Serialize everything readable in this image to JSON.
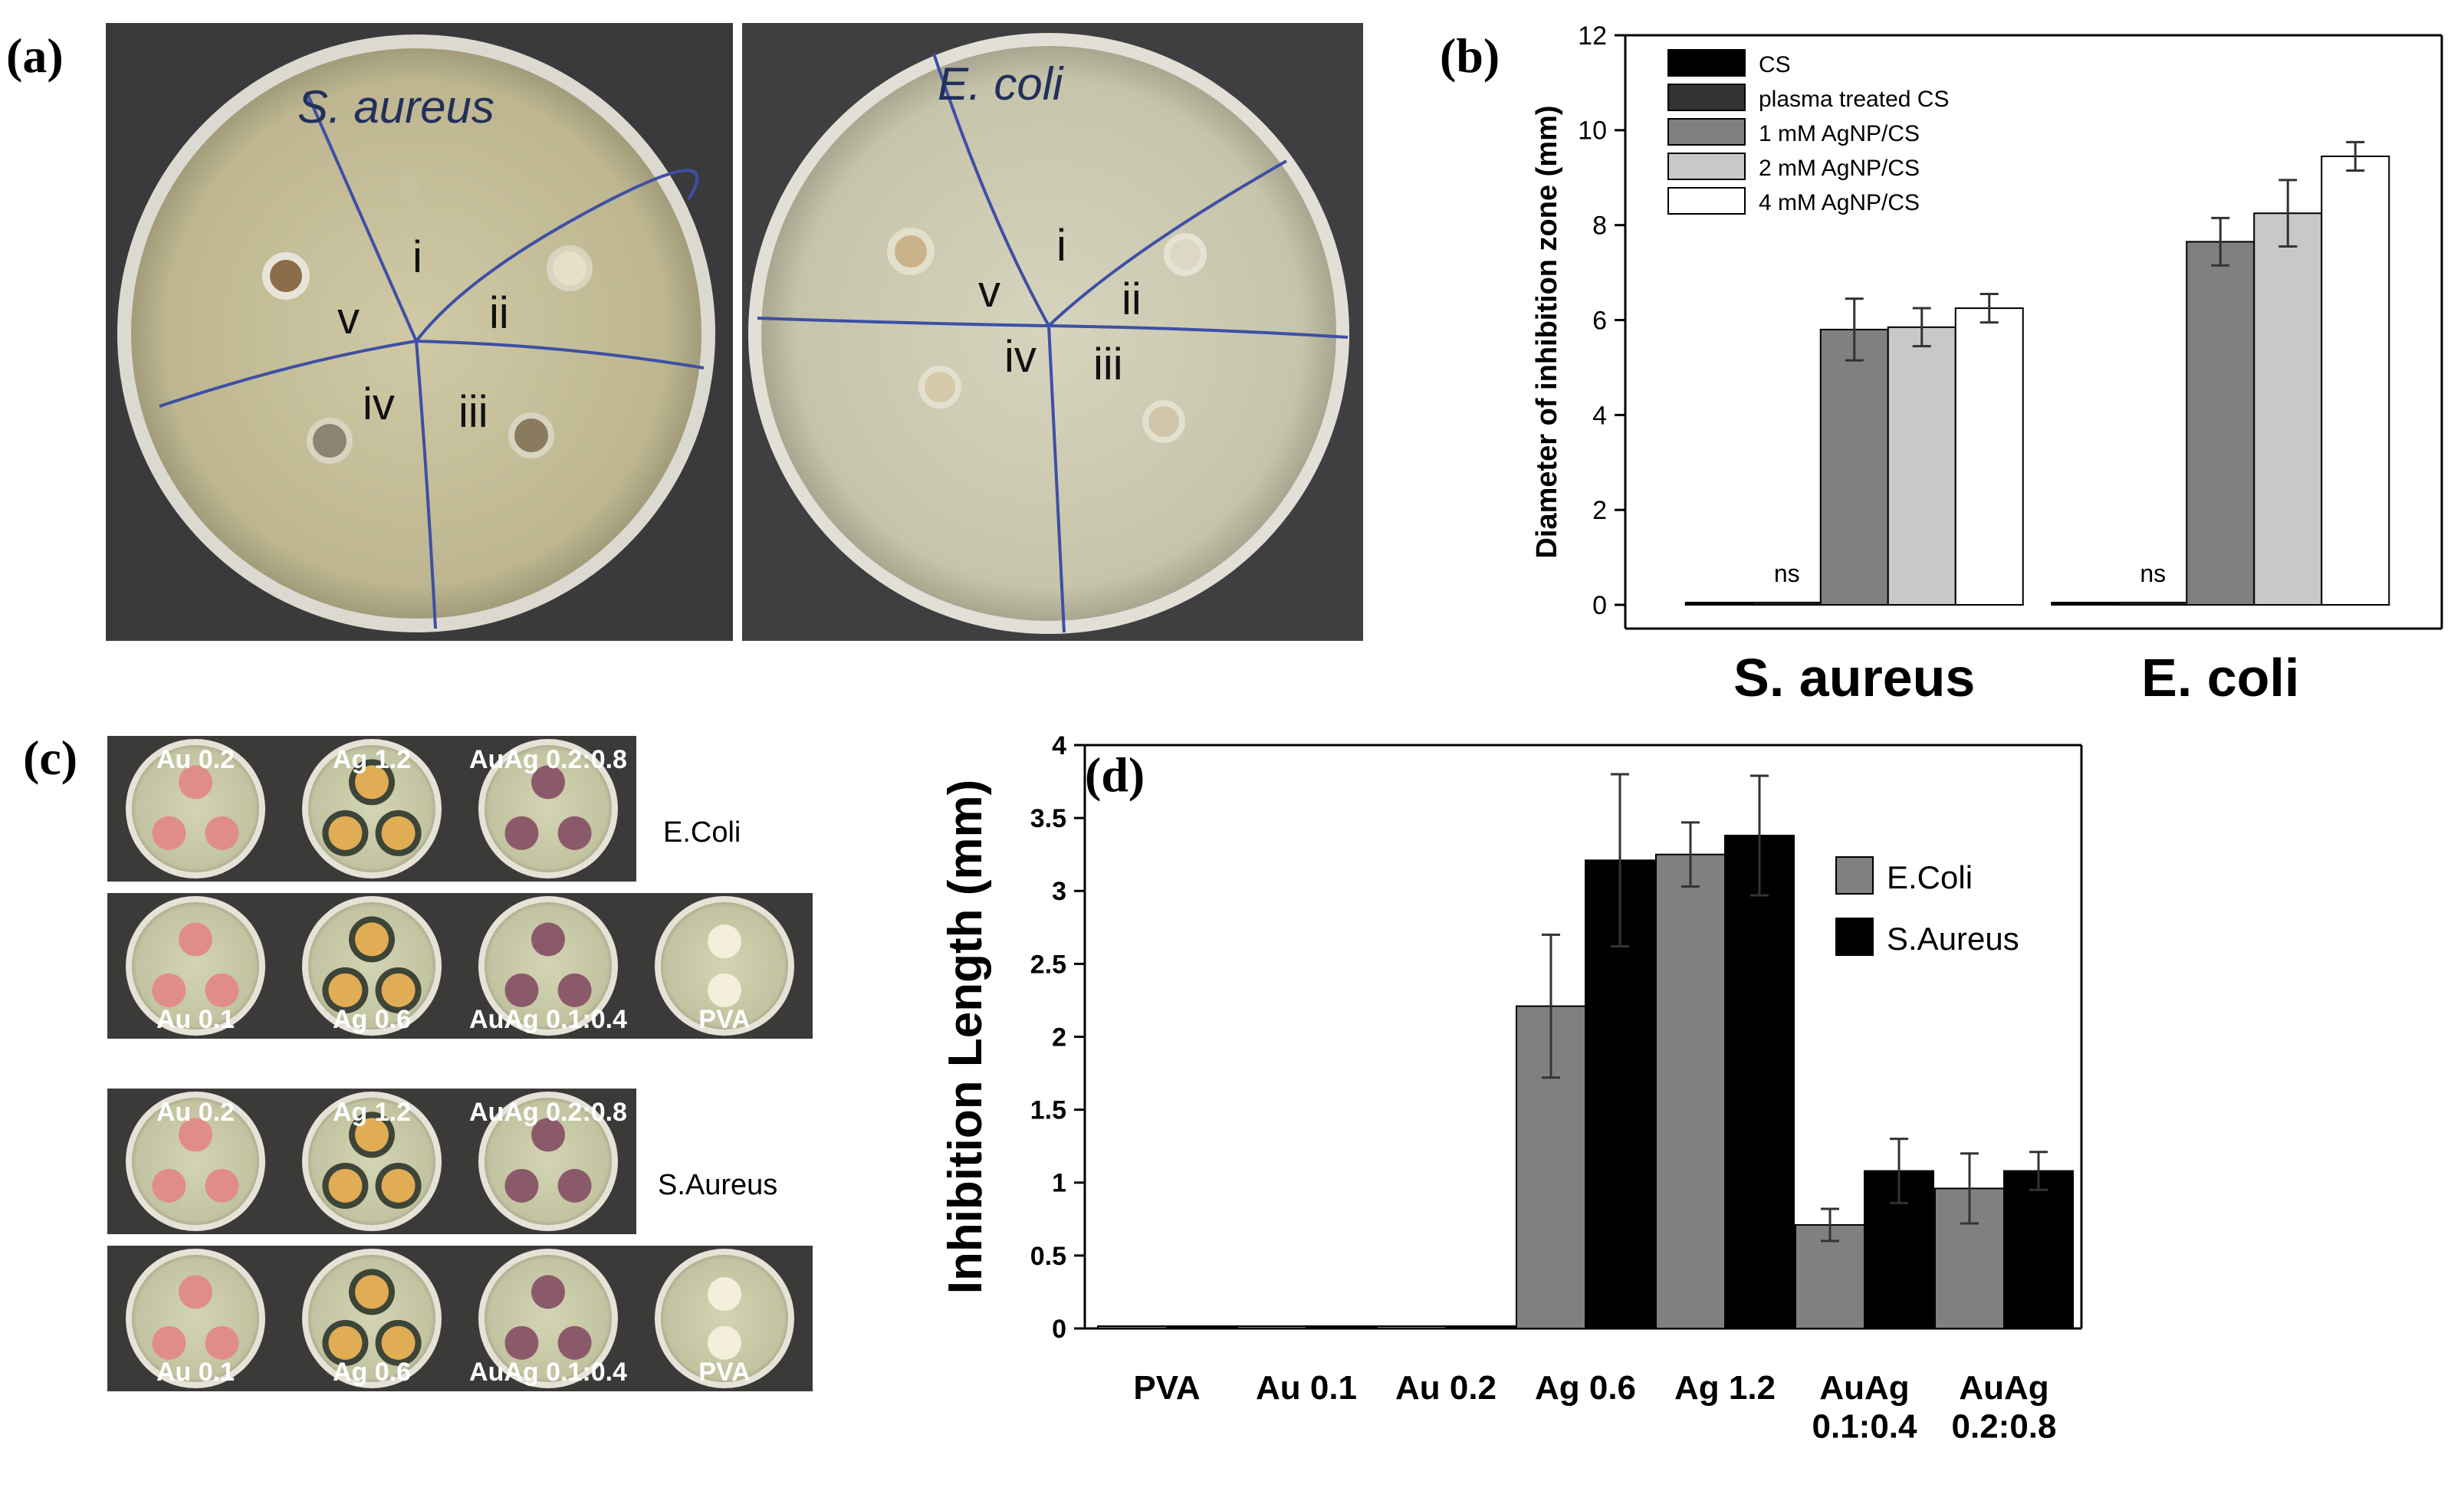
{
  "panel_labels": {
    "a": "(a)",
    "b": "(b)",
    "c": "(c)",
    "d": "(d)"
  },
  "panel_a": {
    "plates": [
      {
        "organism": "S. aureus",
        "sectors": [
          "i",
          "ii",
          "iii",
          "iv",
          "v"
        ]
      },
      {
        "organism": "E. coli",
        "sectors": [
          "i",
          "ii",
          "iii",
          "iv",
          "v"
        ]
      }
    ]
  },
  "panel_c": {
    "groups": [
      {
        "organism": "E.Coli",
        "row1": [
          "Au 0.2",
          "Ag 1.2",
          "AuAg 0.2:0.8"
        ],
        "row2": [
          "Au 0.1",
          "Ag 0.6",
          "AuAg 0.1:0.4",
          "PVA"
        ]
      },
      {
        "organism": "S.Aureus",
        "row1": [
          "Au 0.2",
          "Ag 1.2",
          "AuAg 0.2:0.8"
        ],
        "row2": [
          "Au 0.1",
          "Ag 0.6",
          "AuAg 0.1:0.4",
          "PVA"
        ]
      }
    ]
  },
  "chart_data": [
    {
      "id": "b",
      "type": "bar",
      "ylabel": "Diameter of inhibition zone (mm)",
      "ylim": [
        -0.5,
        12
      ],
      "yticks": [
        0,
        2,
        4,
        6,
        8,
        10,
        12
      ],
      "categories": [
        "S. aureus",
        "E. coli"
      ],
      "legend_position": "top-left",
      "annotations": [
        "ns",
        "ns"
      ],
      "series": [
        {
          "name": "CS",
          "color": "#000000",
          "values": [
            0,
            0
          ],
          "errors": [
            0,
            0
          ]
        },
        {
          "name": "plasma treated CS",
          "color": "#333333",
          "values": [
            0,
            0
          ],
          "errors": [
            0,
            0
          ]
        },
        {
          "name": "1 mM AgNP/CS",
          "color": "#808080",
          "values": [
            5.8,
            7.65
          ],
          "errors": [
            0.65,
            0.5
          ]
        },
        {
          "name": "2 mM AgNP/CS",
          "color": "#c8c8c8",
          "values": [
            5.85,
            8.25
          ],
          "errors": [
            0.4,
            0.7
          ]
        },
        {
          "name": "4 mM AgNP/CS",
          "color": "#ffffff",
          "values": [
            6.25,
            9.45
          ],
          "errors": [
            0.3,
            0.3
          ]
        }
      ]
    },
    {
      "id": "d",
      "type": "bar",
      "ylabel": "Inhibition Length (mm)",
      "ylim": [
        0,
        4
      ],
      "yticks": [
        "0",
        "0.5",
        "1",
        "1.5",
        "2",
        "2.5",
        "3",
        "3.5",
        "4"
      ],
      "categories": [
        "PVA",
        "Au 0.1",
        "Au 0.2",
        "Ag 0.6",
        "Ag 1.2",
        "AuAg\n0.1:0.4",
        "AuAg\n0.2:0.8"
      ],
      "legend_position": "top-right",
      "series": [
        {
          "name": "E.Coli",
          "color": "#808080",
          "values": [
            0,
            0,
            0,
            2.21,
            3.25,
            0.71,
            0.96
          ],
          "errors": [
            0,
            0,
            0,
            0.49,
            0.22,
            0.11,
            0.24
          ]
        },
        {
          "name": "S.Aureus",
          "color": "#000000",
          "values": [
            0,
            0,
            0,
            3.21,
            3.38,
            1.08,
            1.08
          ],
          "errors": [
            0,
            0,
            0,
            0.59,
            0.41,
            0.22,
            0.13
          ]
        }
      ]
    }
  ]
}
